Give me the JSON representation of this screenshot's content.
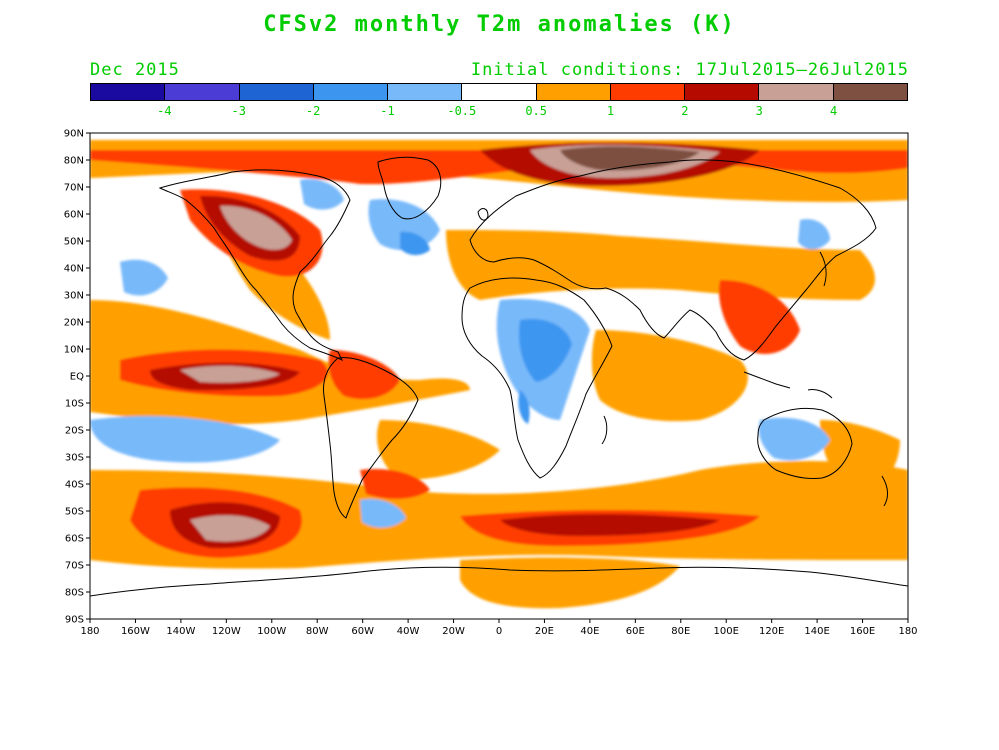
{
  "title": "CFSv2 monthly T2m anomalies (K)",
  "valid_month": "Dec 2015",
  "initial_conditions": "Initial conditions: 17Jul2015–26Jul2015",
  "colorbar": {
    "colors": [
      "#1a0aa0",
      "#4b3cd6",
      "#1e64d2",
      "#3c96f0",
      "#78b9fa",
      "#ffffff",
      "#ffa000",
      "#ff3c00",
      "#b40a00",
      "#c8a096",
      "#7d5041"
    ],
    "labels": [
      "-4",
      "-3",
      "-2",
      "-1",
      "-0.5",
      "0.5",
      "1",
      "2",
      "3",
      "4"
    ]
  },
  "map": {
    "lat_labels": [
      "90N",
      "80N",
      "70N",
      "60N",
      "50N",
      "40N",
      "30N",
      "20N",
      "10N",
      "EQ",
      "10S",
      "20S",
      "30S",
      "40S",
      "50S",
      "60S",
      "70S",
      "80S",
      "90S"
    ],
    "lon_labels": [
      "180",
      "160W",
      "140W",
      "120W",
      "100W",
      "80W",
      "60W",
      "40W",
      "20W",
      "0",
      "20E",
      "40E",
      "60E",
      "80E",
      "100E",
      "120E",
      "140E",
      "160E",
      "180"
    ]
  }
}
